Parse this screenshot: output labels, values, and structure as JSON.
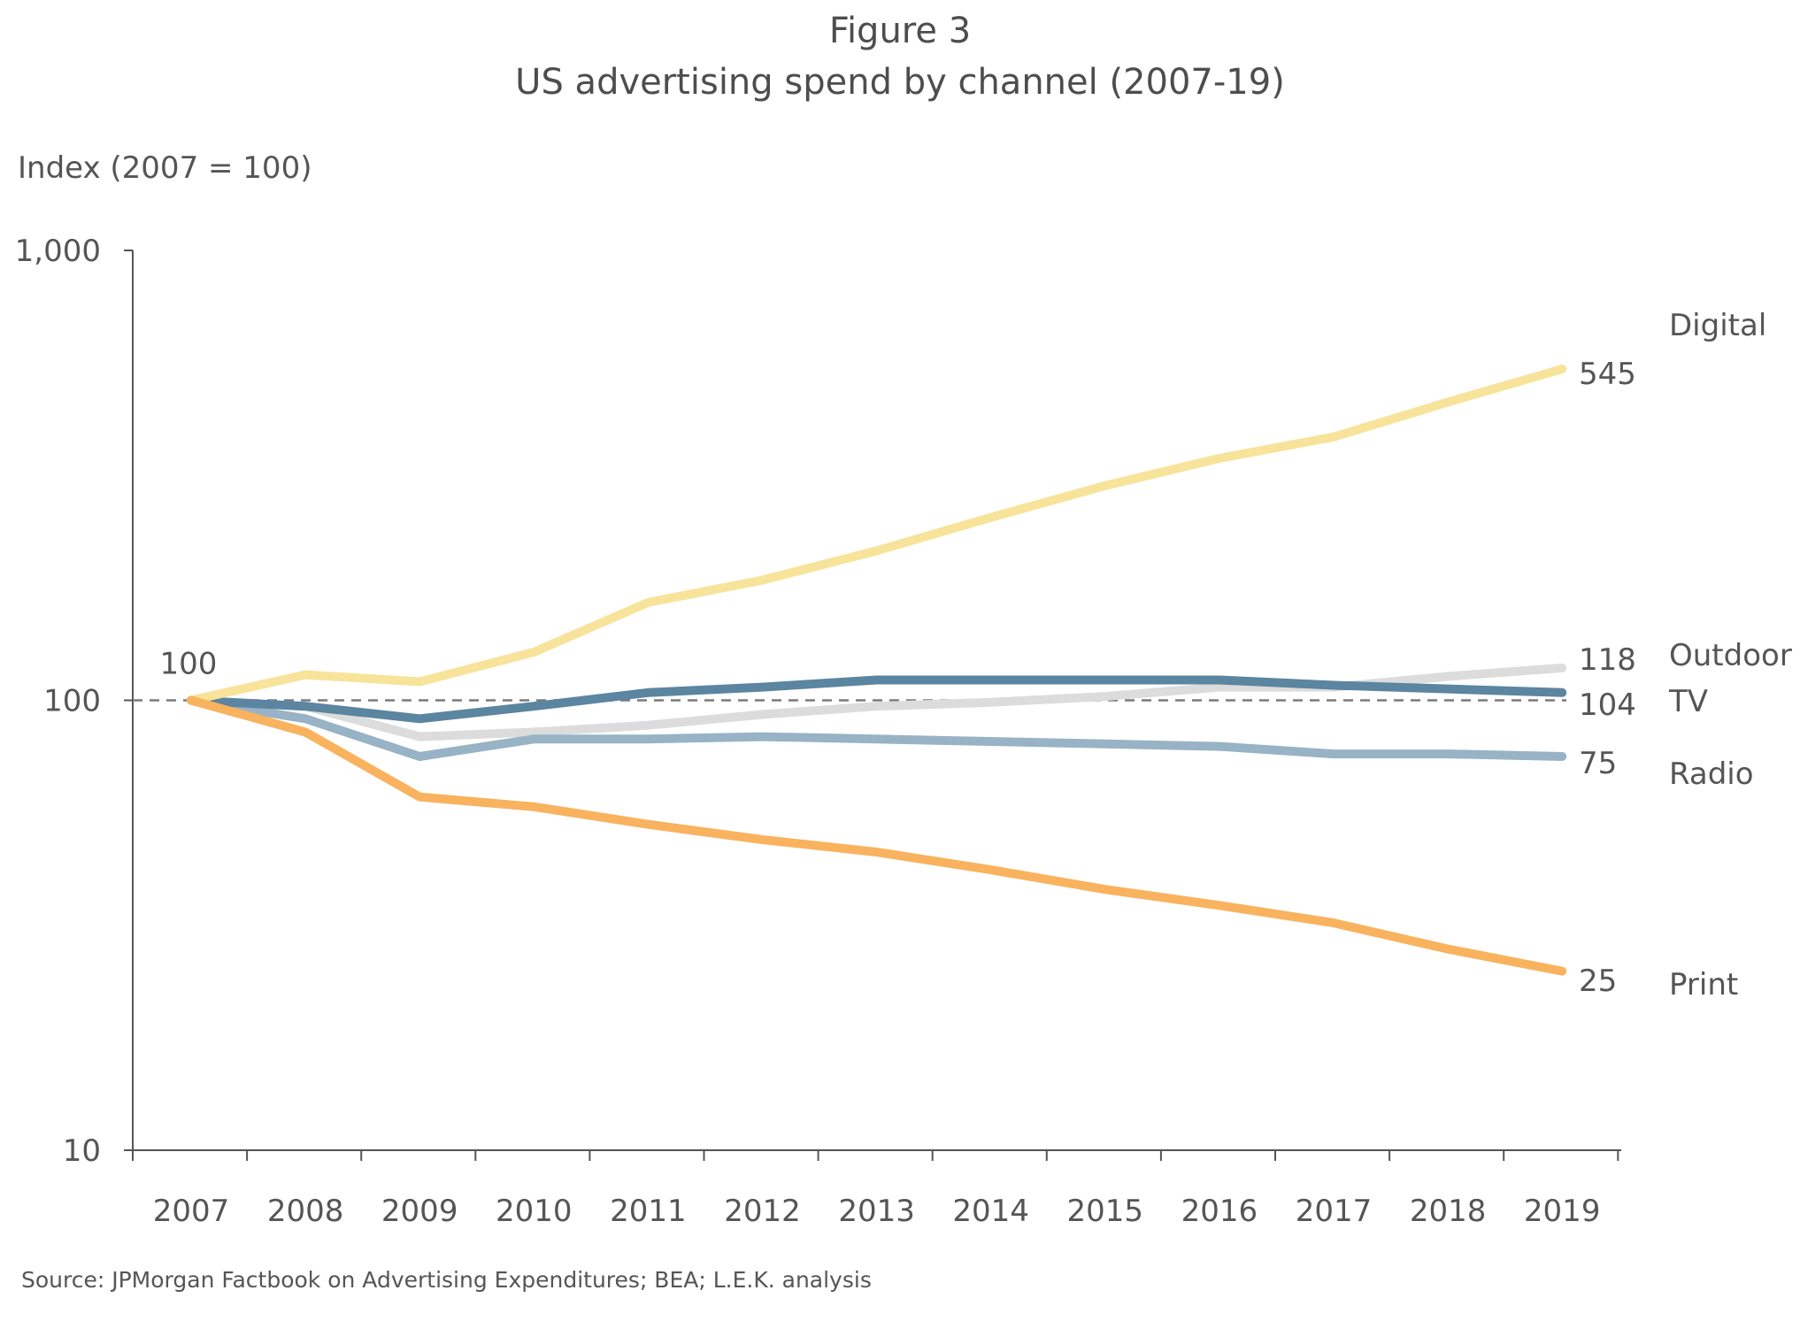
{
  "title": "Figure 3",
  "subtitle": "US advertising spend by channel (2007-19)",
  "source": "Source: JPMorgan Factbook on Advertising Expenditures; BEA; L.E.K. analysis",
  "chart_data": {
    "type": "line",
    "ylabel": "Index (2007 = 100)",
    "xlabel": "",
    "yscale": "log",
    "ylim": [
      10,
      1000
    ],
    "yticks": [
      "10",
      "100",
      "1,000"
    ],
    "x": [
      "2007",
      "2008",
      "2009",
      "2010",
      "2011",
      "2012",
      "2013",
      "2014",
      "2015",
      "2016",
      "2017",
      "2018",
      "2019"
    ],
    "reference_line": {
      "y": 100,
      "style": "dashed",
      "color": "#7a7a7a"
    },
    "start_label": "100",
    "series": [
      {
        "name": "Digital",
        "color": "#f7e39a",
        "values": [
          100,
          114,
          110,
          128,
          165,
          185,
          215,
          255,
          300,
          345,
          385,
          460,
          545
        ],
        "end_label": "545"
      },
      {
        "name": "Outdoor",
        "color": "#dcdcdc",
        "values": [
          100,
          97,
          83,
          85,
          88,
          93,
          97,
          99,
          102,
          107,
          107,
          113,
          118
        ],
        "end_label": "118"
      },
      {
        "name": "TV",
        "color": "#5b85a0",
        "values": [
          100,
          97,
          91,
          97,
          104,
          107,
          111,
          111,
          111,
          111,
          108,
          106,
          104
        ],
        "end_label": "104"
      },
      {
        "name": "Radio",
        "color": "#97b3c5",
        "values": [
          100,
          91,
          75,
          82,
          82,
          83,
          82,
          81,
          80,
          79,
          76,
          76,
          75
        ],
        "end_label": "75"
      },
      {
        "name": "Print",
        "color": "#f9b25e",
        "values": [
          100,
          85,
          61,
          58,
          53,
          49,
          46,
          42,
          38,
          35,
          32,
          28,
          25
        ],
        "end_label": "25"
      }
    ]
  }
}
